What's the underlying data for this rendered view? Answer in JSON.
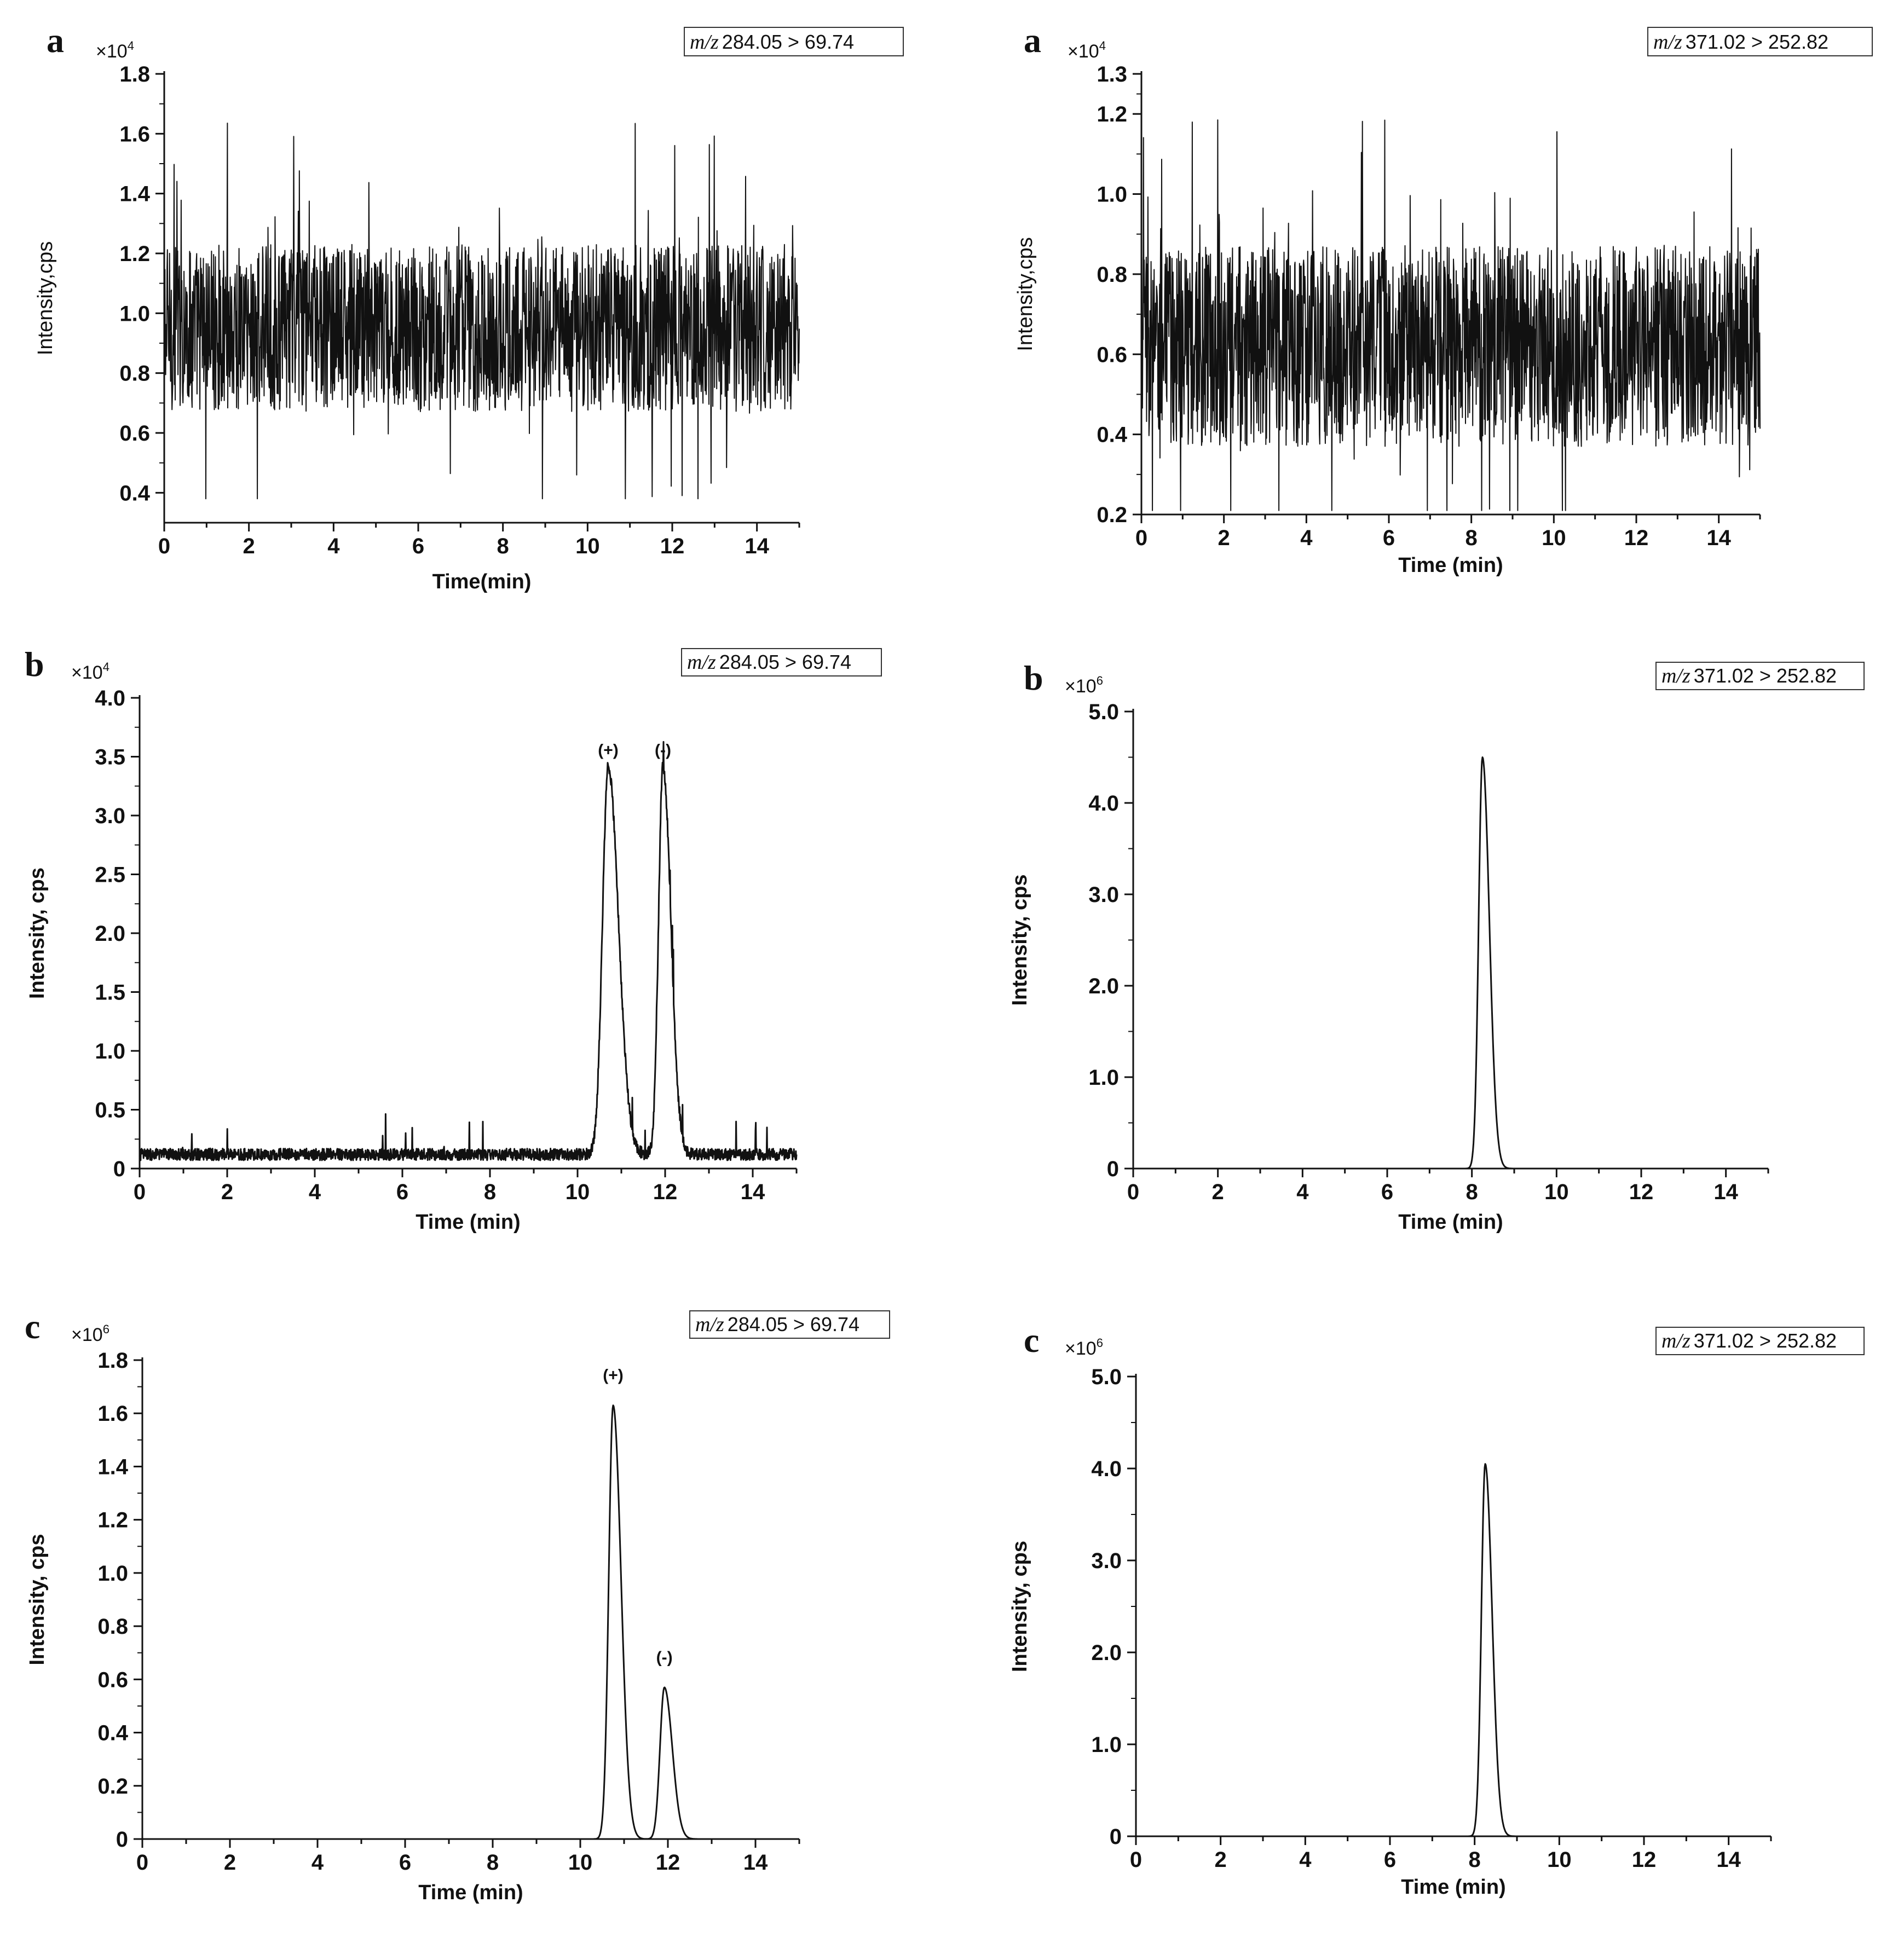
{
  "chart_data": [
    {
      "panel": "a",
      "type": "line",
      "trace": "noise",
      "transition": "284.05 > 69.74",
      "xlabel": "Time(min)",
      "ylabel": "Intensity,cps",
      "ylabel_bold": false,
      "multiplier": "4",
      "xlim": [
        0,
        15
      ],
      "ylim": [
        0.3,
        1.8
      ],
      "xticks": [
        0,
        2,
        4,
        6,
        8,
        10,
        12,
        14
      ],
      "xtick_labels": [
        "0",
        "2",
        "4",
        "6",
        "8",
        "10",
        "12",
        "14"
      ],
      "yticks": [
        0.4,
        0.6,
        0.8,
        1.0,
        1.2,
        1.4,
        1.6,
        1.8
      ],
      "ytick_labels": [
        "0.4",
        "0.6",
        "0.8",
        "1.0",
        "1.2",
        "1.4",
        "1.6",
        "1.8"
      ],
      "baseline": 0.95,
      "noise_amplitude": 0.28,
      "noise_min": 0.38,
      "noise_max": 1.65
    },
    {
      "panel": "a",
      "type": "line",
      "trace": "noise",
      "transition": "371.02 > 252.82",
      "xlabel": "Time (min)",
      "ylabel": "Intensity,cps",
      "ylabel_bold": false,
      "multiplier": "4",
      "xlim": [
        0,
        15
      ],
      "ylim": [
        0.2,
        1.3
      ],
      "xticks": [
        0,
        2,
        4,
        6,
        8,
        10,
        12,
        14
      ],
      "xtick_labels": [
        "0",
        "2",
        "4",
        "6",
        "8",
        "10",
        "12",
        "14"
      ],
      "yticks": [
        0.2,
        0.4,
        0.6,
        0.8,
        1.0,
        1.2,
        1.3
      ],
      "ytick_labels": [
        "0.2",
        "0.4",
        "0.6",
        "0.8",
        "1.0",
        "1.2",
        "1.3"
      ],
      "baseline": 0.62,
      "noise_amplitude": 0.25,
      "noise_min": 0.21,
      "noise_max": 1.2
    },
    {
      "panel": "b",
      "type": "line",
      "trace": "peaks",
      "transition": "284.05 > 69.74",
      "xlabel": "Time (min)",
      "ylabel": "Intensity, cps",
      "ylabel_bold": true,
      "multiplier": "4",
      "xlim": [
        0,
        15
      ],
      "ylim": [
        0,
        4.0
      ],
      "xticks": [
        0,
        2,
        4,
        6,
        8,
        10,
        12,
        14
      ],
      "xtick_labels": [
        "0",
        "2",
        "4",
        "6",
        "8",
        "10",
        "12",
        "14"
      ],
      "yticks": [
        0,
        0.5,
        1.0,
        1.5,
        2.0,
        2.5,
        3.0,
        3.5,
        4.0
      ],
      "ytick_labels": [
        "0",
        "0.5",
        "1.0",
        "1.5",
        "2.0",
        "2.5",
        "3.0",
        "3.5",
        "4.0"
      ],
      "baseline": 0.12,
      "noise_amplitude": 0.1,
      "noise_max": 0.45,
      "peaks": [
        {
          "label": "(+)",
          "rt": 10.7,
          "height": 3.3,
          "width": 0.13
        },
        {
          "label": "(-)",
          "rt": 11.95,
          "height": 3.3,
          "width": 0.1
        }
      ]
    },
    {
      "panel": "b",
      "type": "line",
      "trace": "peaks",
      "transition": "371.02 > 252.82",
      "xlabel": "Time (min)",
      "ylabel": "Intensity, cps",
      "ylabel_bold": true,
      "multiplier": "6",
      "xlim": [
        0,
        15
      ],
      "ylim": [
        0,
        5.0
      ],
      "xticks": [
        0,
        2,
        4,
        6,
        8,
        10,
        12,
        14
      ],
      "xtick_labels": [
        "0",
        "2",
        "4",
        "6",
        "8",
        "10",
        "12",
        "14"
      ],
      "yticks": [
        0,
        1.0,
        2.0,
        3.0,
        4.0,
        5.0
      ],
      "ytick_labels": [
        "0",
        "1.0",
        "2.0",
        "3.0",
        "4.0",
        "5.0"
      ],
      "baseline": 0.0,
      "noise_amplitude": 0.0,
      "peaks": [
        {
          "label": "",
          "rt": 8.25,
          "height": 4.5,
          "width": 0.09
        }
      ]
    },
    {
      "panel": "c",
      "type": "line",
      "trace": "peaks",
      "transition": "284.05 > 69.74",
      "xlabel": "Time (min)",
      "ylabel": "Intensity, cps",
      "ylabel_bold": true,
      "multiplier": "6",
      "xlim": [
        0,
        15
      ],
      "ylim": [
        0,
        1.8
      ],
      "xticks": [
        0,
        2,
        4,
        6,
        8,
        10,
        12,
        14
      ],
      "xtick_labels": [
        "0",
        "2",
        "4",
        "6",
        "8",
        "10",
        "12",
        "14"
      ],
      "yticks": [
        0,
        0.2,
        0.4,
        0.6,
        0.8,
        1.0,
        1.2,
        1.4,
        1.6,
        1.8
      ],
      "ytick_labels": [
        "0",
        "0.2",
        "0.4",
        "0.6",
        "0.8",
        "1.0",
        "1.2",
        "1.4",
        "1.6",
        "1.8"
      ],
      "baseline": 0.0,
      "noise_amplitude": 0.0,
      "peaks": [
        {
          "label": "(+)",
          "rt": 10.75,
          "height": 1.63,
          "width": 0.1
        },
        {
          "label": "(-)",
          "rt": 11.92,
          "height": 0.57,
          "width": 0.1
        }
      ]
    },
    {
      "panel": "c",
      "type": "line",
      "trace": "peaks",
      "transition": "371.02 > 252.82",
      "xlabel": "Time (min)",
      "ylabel": "Intensity, cps",
      "ylabel_bold": true,
      "multiplier": "6",
      "xlim": [
        0,
        15
      ],
      "ylim": [
        0,
        5.0
      ],
      "xticks": [
        0,
        2,
        4,
        6,
        8,
        10,
        12,
        14
      ],
      "xtick_labels": [
        "0",
        "2",
        "4",
        "6",
        "8",
        "10",
        "12",
        "14"
      ],
      "yticks": [
        0,
        1.0,
        2.0,
        3.0,
        4.0,
        5.0
      ],
      "ytick_labels": [
        "0",
        "1.0",
        "2.0",
        "3.0",
        "4.0",
        "5.0"
      ],
      "baseline": 0.0,
      "noise_amplitude": 0.0,
      "peaks": [
        {
          "label": "",
          "rt": 8.25,
          "height": 4.05,
          "width": 0.09
        }
      ]
    }
  ],
  "labels": {
    "mz_prefix": "m/z",
    "mult_base": "×10"
  },
  "colors": {
    "trace": "#111111",
    "axis": "#111111"
  }
}
